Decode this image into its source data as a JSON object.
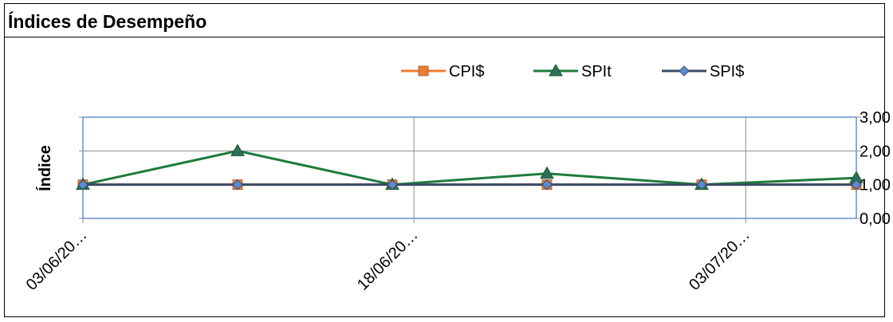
{
  "chart_data": {
    "type": "line",
    "title": "Índices de Desempeño",
    "ylabel": "Índice",
    "xlabel": "",
    "x_tick_labels": [
      "03/06/20…",
      "18/06/20…",
      "03/07/20…"
    ],
    "y_tick_labels": [
      "0,00",
      "1,00",
      "2,00",
      "3,00"
    ],
    "ylim": [
      0,
      3
    ],
    "legend_position": "top",
    "grid": true,
    "y_axis_side": "right",
    "series": [
      {
        "name": "CPI$",
        "color": "#ED7D31",
        "marker": "square",
        "values": [
          1.0,
          1.0,
          1.0,
          1.0,
          1.0,
          1.0
        ]
      },
      {
        "name": "SPIt",
        "color": "#1E7B3C",
        "marker": "triangle",
        "values": [
          1.0,
          2.0,
          1.0,
          1.33,
          1.0,
          1.2
        ]
      },
      {
        "name": "SPI$",
        "color": "#3A4A66",
        "marker": "diamond",
        "values": [
          1.0,
          1.0,
          1.0,
          1.0,
          1.0,
          1.0
        ]
      }
    ]
  }
}
